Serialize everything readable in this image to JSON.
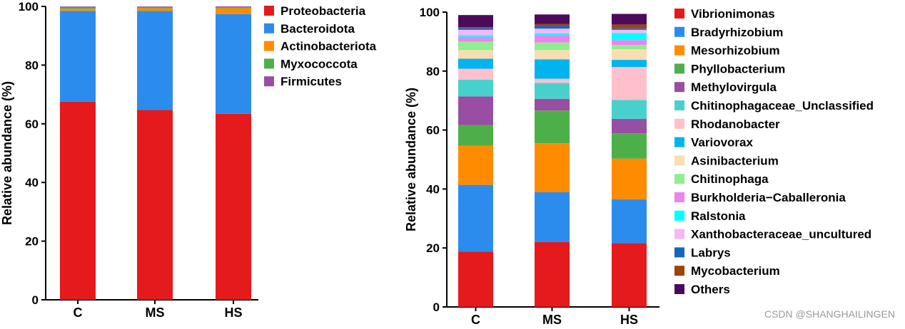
{
  "watermark": "CSDN @SHANGHAILINGEN",
  "chart_data": [
    {
      "type": "bar",
      "stacked": true,
      "categories": [
        "C",
        "MS",
        "HS"
      ],
      "ylabel": "Relative abundance (%)",
      "ylim": [
        0,
        100
      ],
      "yticks": [
        "0",
        "20",
        "40",
        "60",
        "80",
        "100"
      ],
      "legend_position": "right",
      "series": [
        {
          "name": "Proteobacteria",
          "color": "#e41a1c",
          "values": [
            67.5,
            64.7,
            63.4
          ]
        },
        {
          "name": "Bacteroidota",
          "color": "#2b8cee",
          "values": [
            31.0,
            33.8,
            34.0
          ]
        },
        {
          "name": "Actinobacteriota",
          "color": "#ff8c00",
          "values": [
            0.7,
            0.9,
            2.0
          ]
        },
        {
          "name": "Myxococcota",
          "color": "#4daf4a",
          "values": [
            0.6,
            0.4,
            0.3
          ]
        },
        {
          "name": "Firmicutes",
          "color": "#984ea3",
          "values": [
            0.2,
            0.2,
            0.3
          ]
        }
      ]
    },
    {
      "type": "bar",
      "stacked": true,
      "categories": [
        "C",
        "MS",
        "HS"
      ],
      "ylabel": "Relative abundance (%)",
      "ylim": [
        0,
        100
      ],
      "yticks": [
        "0",
        "20",
        "40",
        "60",
        "80",
        "100"
      ],
      "legend_position": "right",
      "series": [
        {
          "name": "Vibrionimonas",
          "color": "#e41a1c",
          "values": [
            18.8,
            22.0,
            21.6
          ]
        },
        {
          "name": "Bradyrhizobium",
          "color": "#2b8cee",
          "values": [
            22.6,
            16.9,
            14.9
          ]
        },
        {
          "name": "Mesorhizobium",
          "color": "#ff8c00",
          "values": [
            13.3,
            16.6,
            13.8
          ]
        },
        {
          "name": "Phyllobacterium",
          "color": "#4daf4a",
          "values": [
            7.0,
            11.1,
            8.6
          ]
        },
        {
          "name": "Methylovirgula",
          "color": "#984ea3",
          "values": [
            9.7,
            4.0,
            4.9
          ]
        },
        {
          "name": "Chitinophagaceae_Unclassified",
          "color": "#48d1cc",
          "values": [
            5.7,
            5.4,
            6.4
          ]
        },
        {
          "name": "Rhodanobacter",
          "color": "#ffc0cb",
          "values": [
            3.7,
            1.4,
            11.2
          ]
        },
        {
          "name": "Variovorax",
          "color": "#00b4f0",
          "values": [
            3.4,
            6.6,
            2.4
          ]
        },
        {
          "name": "Asinibacterium",
          "color": "#f9deb0",
          "values": [
            2.9,
            3.1,
            3.6
          ]
        },
        {
          "name": "Chitinophaga",
          "color": "#90ee90",
          "values": [
            2.9,
            2.6,
            1.5
          ]
        },
        {
          "name": "Burkholderia−Caballeronia",
          "color": "#ee82ee",
          "values": [
            1.6,
            2.4,
            1.6
          ]
        },
        {
          "name": "Ralstonia",
          "color": "#00ffff",
          "values": [
            0.6,
            0.7,
            2.4
          ]
        },
        {
          "name": "Xanthobacteraceae_uncultured",
          "color": "#f5b8f5",
          "values": [
            1.8,
            1.6,
            1.1
          ]
        },
        {
          "name": "Labrys",
          "color": "#1565c0",
          "values": [
            0.6,
            1.0,
            0.5
          ]
        },
        {
          "name": "Mycobacterium",
          "color": "#a0420c",
          "values": [
            0.3,
            0.6,
            1.3
          ]
        },
        {
          "name": "Others",
          "color": "#4b0b5a",
          "values": [
            4.1,
            3.2,
            3.6
          ]
        }
      ]
    }
  ]
}
